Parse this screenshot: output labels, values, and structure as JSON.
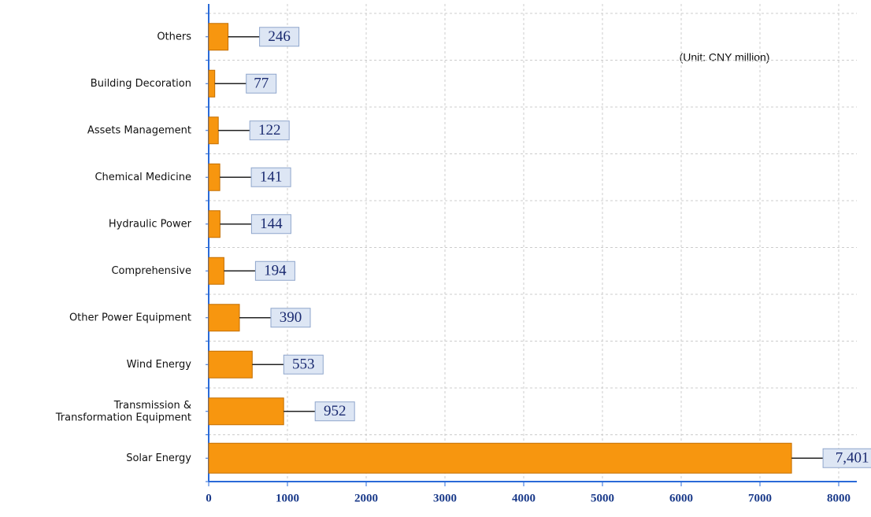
{
  "chart_data": {
    "type": "bar",
    "orientation": "horizontal",
    "annotation": "(Unit: CNY million)",
    "categories": [
      "Others",
      "Building Decoration",
      "Assets Management",
      "Chemical Medicine",
      "Hydraulic Power",
      "Comprehensive",
      "Other Power Equipment",
      "Wind Energy",
      "Transmission &\nTransformation Equipment",
      "Solar Energy"
    ],
    "values": [
      246,
      77,
      122,
      141,
      144,
      194,
      390,
      553,
      952,
      7401
    ],
    "value_labels": [
      "246",
      "77",
      "122",
      "141",
      "144",
      "194",
      "390",
      "553",
      "952",
      "7,401"
    ],
    "color": "#f7960f",
    "xlim": [
      0,
      8230
    ],
    "xticks": [
      0,
      1000,
      2000,
      3000,
      4000,
      5000,
      6000,
      7000,
      8000
    ],
    "grid": true
  }
}
